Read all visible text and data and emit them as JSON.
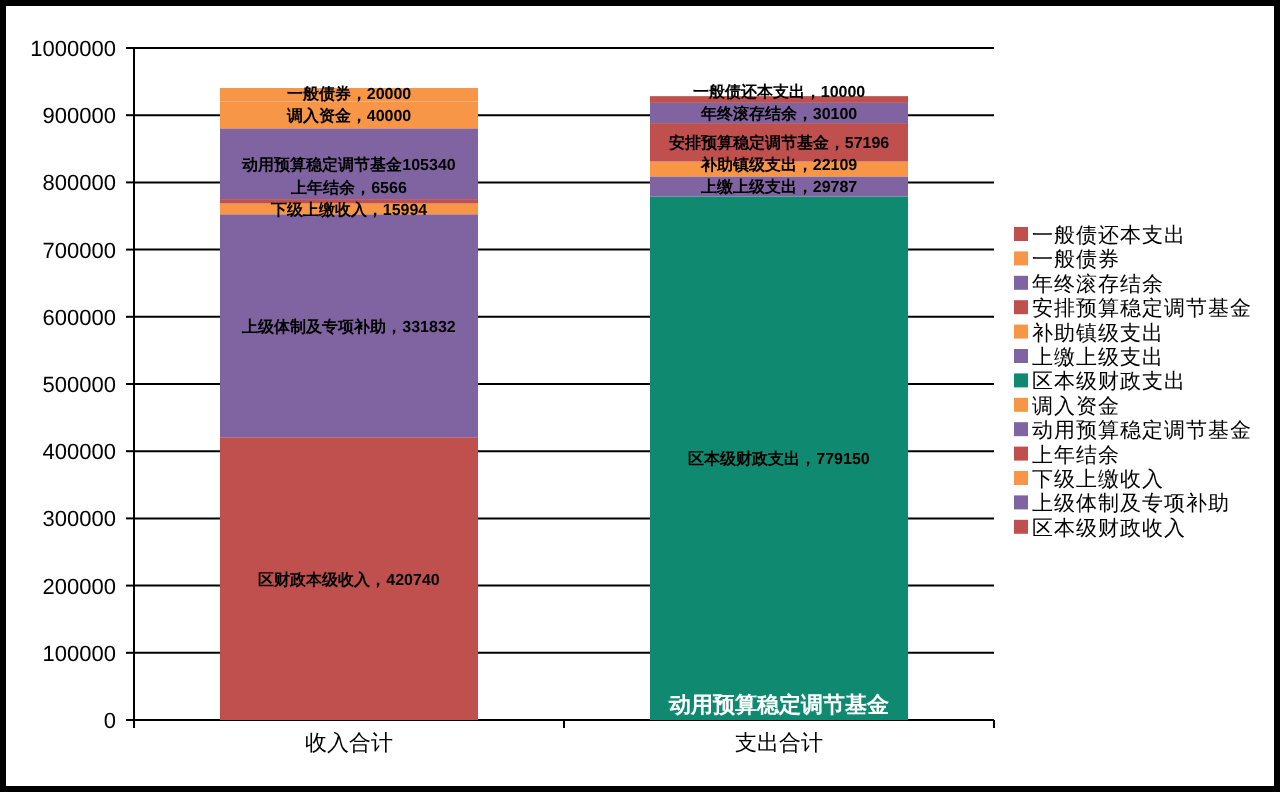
{
  "chart_data": {
    "type": "bar",
    "stacked": true,
    "categories": [
      "收入合计",
      "支出合计"
    ],
    "ylim": [
      0,
      1000000
    ],
    "yticks": [
      0,
      100000,
      200000,
      300000,
      400000,
      500000,
      600000,
      700000,
      800000,
      900000,
      1000000
    ],
    "grid": "y",
    "legend": "right",
    "annotations": [
      {
        "text": "动用预算稳定调节基金",
        "x": "支出合计",
        "y": 0
      }
    ],
    "series": [
      {
        "name": "区本级财政收入",
        "color": "#c0504d",
        "values": [
          420740,
          null
        ],
        "value_labels": [
          "区财政本级收入，420740",
          null
        ]
      },
      {
        "name": "上级体制及专项补助",
        "color": "#8064a2",
        "values": [
          331832,
          null
        ],
        "value_labels": [
          "上级体制及专项补助，331832",
          null
        ]
      },
      {
        "name": "下级上缴收入",
        "color": "#f79646",
        "values": [
          15994,
          null
        ],
        "value_labels": [
          "下级上缴收入，15994",
          null
        ]
      },
      {
        "name": "上年结余",
        "color": "#c0504d",
        "values": [
          6566,
          null
        ],
        "value_labels": [
          "上年结余，6566",
          null
        ]
      },
      {
        "name": "动用预算稳定调节基金",
        "color": "#8064a2",
        "values": [
          105340,
          null
        ],
        "value_labels": [
          "动用预算稳定调节基金105340",
          null
        ]
      },
      {
        "name": "调入资金",
        "color": "#f79646",
        "values": [
          40000,
          null
        ],
        "value_labels": [
          "调入资金，40000",
          null
        ]
      },
      {
        "name": "区本级财政支出",
        "color": "#0f8a70",
        "values": [
          null,
          779150
        ],
        "value_labels": [
          null,
          "区本级财政支出，779150"
        ]
      },
      {
        "name": "上缴上级支出",
        "color": "#8064a2",
        "values": [
          null,
          29787
        ],
        "value_labels": [
          null,
          "上缴上级支出，29787"
        ]
      },
      {
        "name": "补助镇级支出",
        "color": "#f79646",
        "values": [
          null,
          22109
        ],
        "value_labels": [
          null,
          "补助镇级支出，22109"
        ]
      },
      {
        "name": "安排预算稳定调节基金",
        "color": "#c0504d",
        "values": [
          null,
          57196
        ],
        "value_labels": [
          null,
          "安排预算稳定调节基金，57196"
        ]
      },
      {
        "name": "年终滚存结余",
        "color": "#8064a2",
        "values": [
          null,
          30100
        ],
        "value_labels": [
          null,
          "年终滚存结余，30100"
        ]
      },
      {
        "name": "一般债券",
        "color": "#f79646",
        "values": [
          20000,
          null
        ],
        "value_labels": [
          "一般债券，20000",
          null
        ]
      },
      {
        "name": "一般债还本支出",
        "color": "#c0504d",
        "values": [
          null,
          10000
        ],
        "value_labels": [
          null,
          "一般债还本支出，10000"
        ]
      }
    ]
  }
}
